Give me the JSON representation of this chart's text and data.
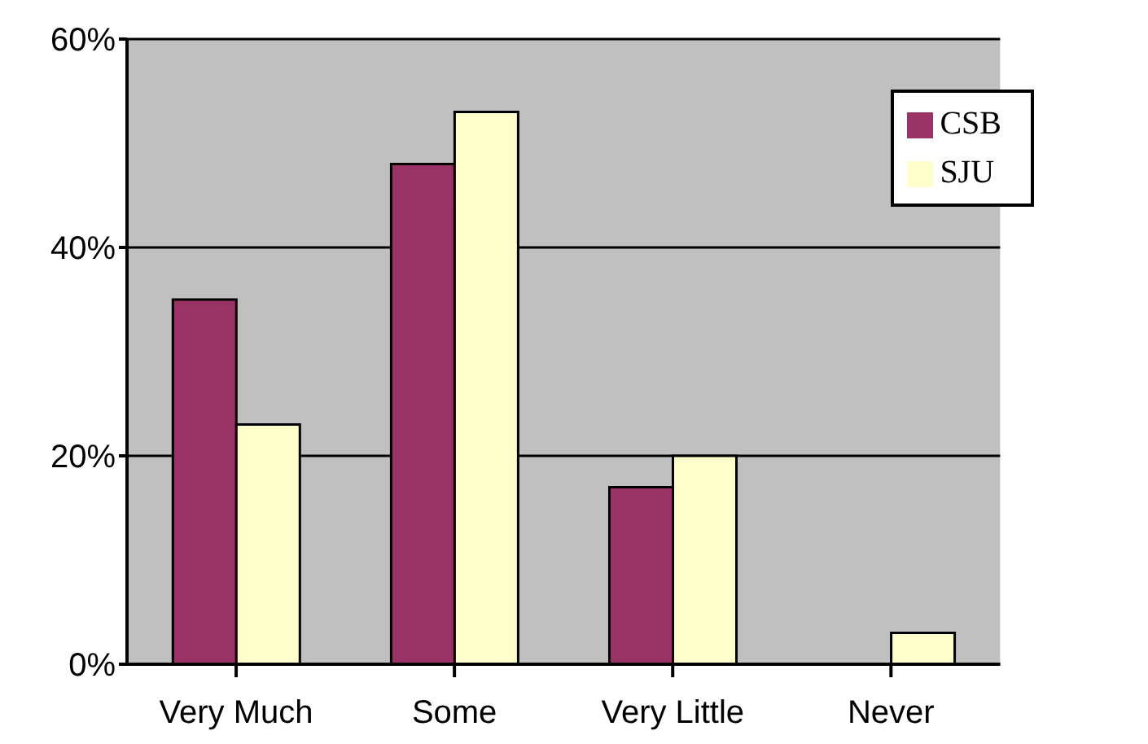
{
  "chart_data": {
    "type": "bar",
    "categories": [
      "Very Much",
      "Some",
      "Very Little",
      "Never"
    ],
    "series": [
      {
        "name": "CSB",
        "color": "#993366",
        "values": [
          35,
          48,
          17,
          0
        ]
      },
      {
        "name": "SJU",
        "color": "#ffffcc",
        "values": [
          23,
          53,
          20,
          3
        ]
      }
    ],
    "ylim": [
      0,
      60
    ],
    "yticks": [
      {
        "value": 0,
        "label": "0%"
      },
      {
        "value": 20,
        "label": "20%"
      },
      {
        "value": 40,
        "label": "40%"
      },
      {
        "value": 60,
        "label": "60%"
      }
    ],
    "grid": "y",
    "legend": "top right"
  }
}
